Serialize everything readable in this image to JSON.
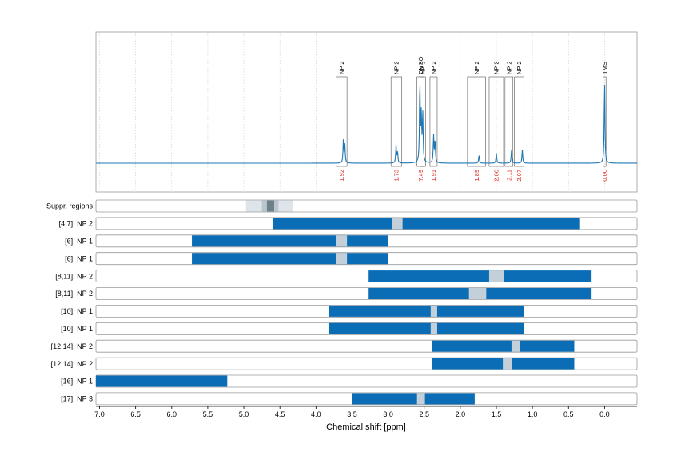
{
  "chart_data": {
    "type": "line",
    "xlabel": "Chemical shift [ppm]",
    "x_axis": {
      "reversed": true,
      "xlim": [
        7.05,
        -0.45
      ],
      "ticks": [
        7.0,
        6.5,
        6.0,
        5.5,
        5.0,
        4.5,
        4.0,
        3.5,
        3.0,
        2.5,
        2.0,
        1.5,
        1.0,
        0.5,
        0.0
      ],
      "tick_labels": [
        "7.0",
        "6.5",
        "6.0",
        "5.5",
        "5.0",
        "4.5",
        "4.0",
        "3.5",
        "3.0",
        "2.5",
        "2.0",
        "1.5",
        "1.0",
        "0.5",
        "0.0"
      ]
    },
    "spectrum": {
      "color": "#1f77b4",
      "grid": "dotted vertical",
      "peaks": [
        {
          "ppm": 3.62,
          "height": 0.28
        },
        {
          "ppm": 3.6,
          "height": 0.22
        },
        {
          "ppm": 2.89,
          "height": 0.21
        },
        {
          "ppm": 2.87,
          "height": 0.14
        },
        {
          "ppm": 2.56,
          "height": 0.97
        },
        {
          "ppm": 2.54,
          "height": 0.55
        },
        {
          "ppm": 2.52,
          "height": 0.58
        },
        {
          "ppm": 2.37,
          "height": 0.32
        },
        {
          "ppm": 2.35,
          "height": 0.28
        },
        {
          "ppm": 1.74,
          "height": 0.1
        },
        {
          "ppm": 1.5,
          "height": 0.12
        },
        {
          "ppm": 1.29,
          "height": 0.16
        },
        {
          "ppm": 1.14,
          "height": 0.16
        },
        {
          "ppm": 0.0,
          "height": 0.98
        }
      ]
    },
    "peak_annotations": [
      {
        "label": "NP 2",
        "range": [
          3.72,
          3.57
        ],
        "integral": "1.92"
      },
      {
        "label": "NP 2",
        "range": [
          2.96,
          2.81
        ],
        "integral": "1.73"
      },
      {
        "label": "DMSO",
        "range": [
          2.6,
          2.5
        ],
        "integral": "7.49"
      },
      {
        "label": "NP 3",
        "range": [
          2.56,
          2.48
        ],
        "integral": null
      },
      {
        "label": "NP 2",
        "range": [
          2.42,
          2.32
        ],
        "integral": "1.91"
      },
      {
        "label": "NP 2",
        "range": [
          1.9,
          1.65
        ],
        "integral": "1.89"
      },
      {
        "label": "NP 2",
        "range": [
          1.6,
          1.4
        ],
        "integral": "2.00"
      },
      {
        "label": "NP 2",
        "range": [
          1.38,
          1.27
        ],
        "integral": "2.11"
      },
      {
        "label": "NP 2",
        "range": [
          1.25,
          1.12
        ],
        "integral": "2.07"
      },
      {
        "label": "TMS",
        "range": [
          0.02,
          -0.02
        ],
        "integral": "0.00"
      }
    ],
    "rows": [
      {
        "label": "Suppr. regions",
        "suppression": true,
        "light": [
          4.97,
          4.32
        ],
        "mid": [
          4.75,
          4.52
        ],
        "dark": [
          4.68,
          4.58
        ]
      },
      {
        "label": "[4,7]; NP 2",
        "bar": [
          4.6,
          0.34
        ],
        "gap": [
          2.95,
          2.8
        ]
      },
      {
        "label": "[6]; NP 1",
        "bar": [
          5.72,
          3.0
        ],
        "gap": [
          3.72,
          3.57
        ]
      },
      {
        "label": "[6]; NP 1",
        "bar": [
          5.72,
          3.0
        ],
        "gap": [
          3.72,
          3.57
        ]
      },
      {
        "label": "[8,11]; NP 2",
        "bar": [
          3.27,
          0.18
        ],
        "gap": [
          1.6,
          1.4
        ]
      },
      {
        "label": "[8,11]; NP 2",
        "bar": [
          3.27,
          0.18
        ],
        "gap": [
          1.88,
          1.64
        ]
      },
      {
        "label": "[10]; NP 1",
        "bar": [
          3.82,
          1.12
        ],
        "gap": [
          2.41,
          2.32
        ]
      },
      {
        "label": "[10]; NP 1",
        "bar": [
          3.82,
          1.12
        ],
        "gap": [
          2.41,
          2.32
        ]
      },
      {
        "label": "[12,14]; NP 2",
        "bar": [
          2.39,
          0.42
        ],
        "gap": [
          1.29,
          1.17
        ]
      },
      {
        "label": "[12,14]; NP 2",
        "bar": [
          2.39,
          0.42
        ],
        "gap": [
          1.41,
          1.28
        ]
      },
      {
        "label": "[16]; NP 1",
        "bar": [
          7.05,
          5.23
        ],
        "gap": null
      },
      {
        "label": "[17]; NP 3",
        "bar": [
          3.5,
          1.8
        ],
        "gap": [
          2.6,
          2.49
        ]
      }
    ],
    "colors": {
      "bar": "#0a6db5",
      "gap": "#c3d0d9",
      "suppr_light": "#dde4ea",
      "suppr_mid": "#b9c6cf",
      "suppr_dark": "#6e7f8a",
      "integral_text": "#e0241b"
    }
  }
}
